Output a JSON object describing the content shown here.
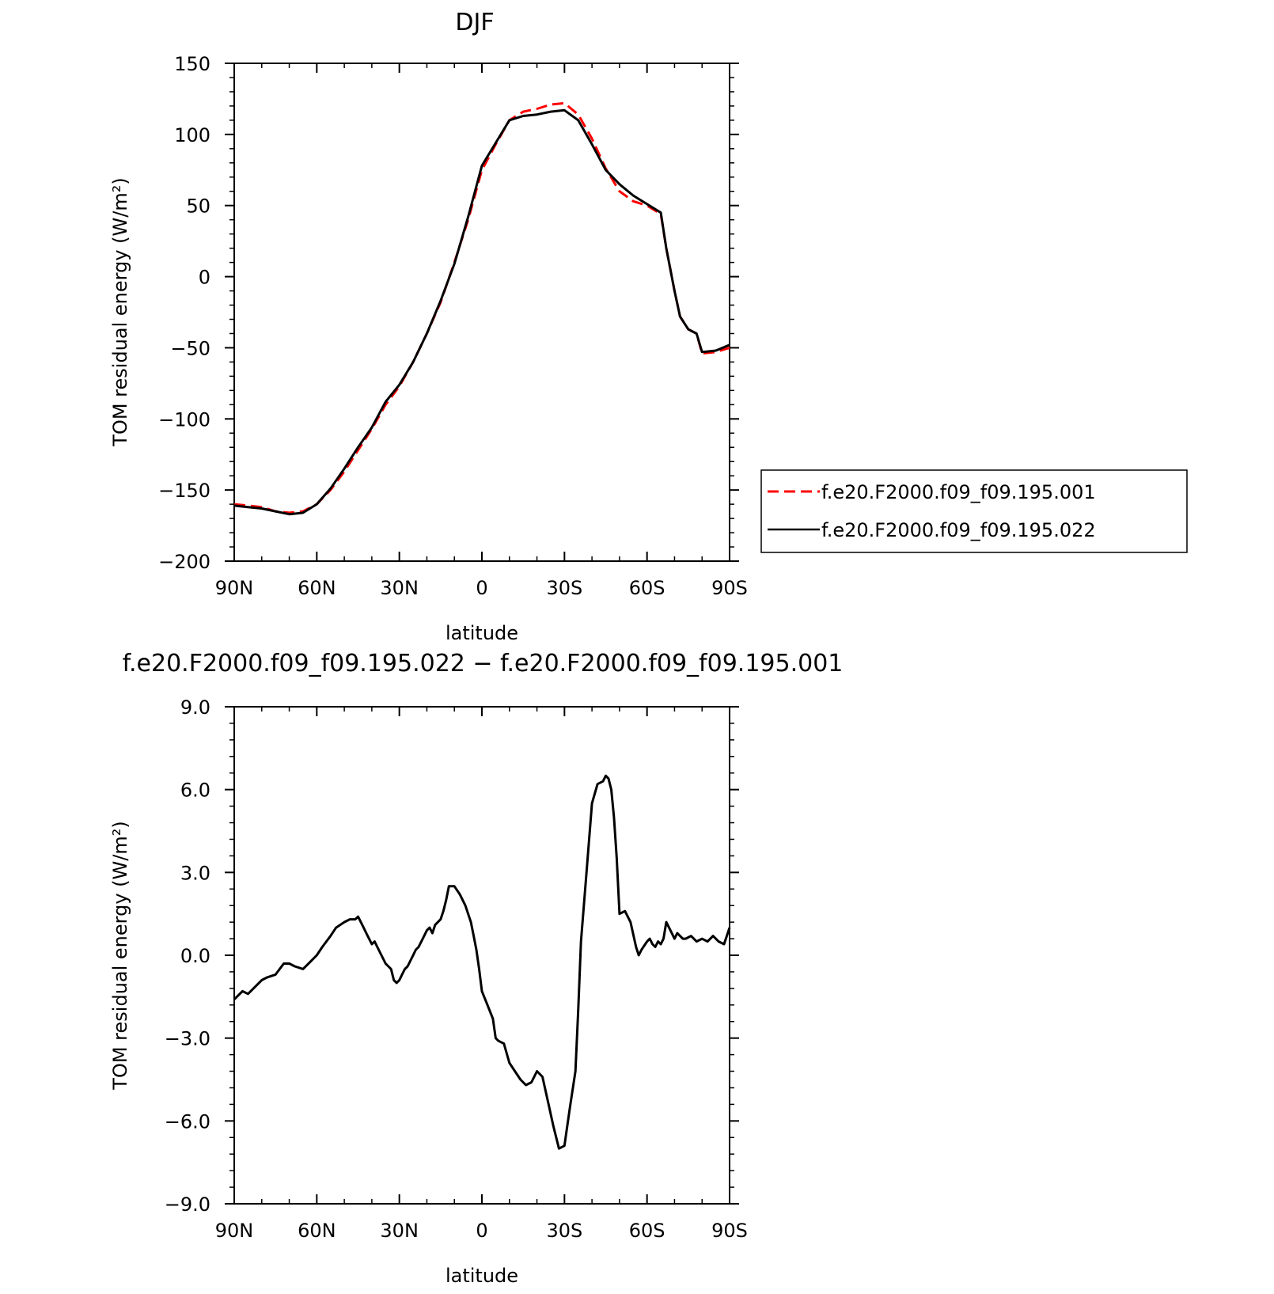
{
  "chart_data": [
    {
      "type": "line",
      "title": "DJF",
      "xlabel": "latitude",
      "ylabel": "TOM residual energy (W/m²)",
      "xlim": [
        90,
        -90
      ],
      "ylim": [
        -200,
        150
      ],
      "x_ticks": [
        90,
        60,
        30,
        0,
        -30,
        -60,
        -90
      ],
      "x_tick_labels": [
        "90N",
        "60N",
        "30N",
        "0",
        "30S",
        "60S",
        "90S"
      ],
      "y_ticks": [
        150,
        100,
        50,
        0,
        -50,
        -100,
        -150,
        -200
      ],
      "y_tick_labels": [
        "150",
        "100",
        "50",
        "0",
        "−50",
        "−100",
        "−150",
        "−200"
      ],
      "grid": false,
      "legend_position": "right",
      "series": [
        {
          "name": "f.e20.F2000.f09_f09.195.001",
          "color": "#ff0000",
          "dash": "dashed",
          "x": [
            90,
            85,
            80,
            75,
            70,
            65,
            60,
            55,
            50,
            45,
            40,
            35,
            30,
            25,
            20,
            15,
            10,
            5,
            0,
            -5,
            -10,
            -15,
            -20,
            -25,
            -30,
            -35,
            -40,
            -45,
            -50,
            -55,
            -60,
            -65,
            -67,
            -70,
            -72,
            -75,
            -78,
            -80,
            -85,
            -90
          ],
          "y": [
            -160,
            -161,
            -162,
            -165,
            -166,
            -165,
            -160,
            -150,
            -137,
            -122,
            -107,
            -90,
            -77,
            -60,
            -40,
            -18,
            10,
            40,
            75,
            93,
            110,
            116,
            118,
            121,
            122,
            114,
            97,
            76,
            60,
            53,
            50,
            44,
            20,
            -10,
            -28,
            -37,
            -40,
            -54,
            -53,
            -50
          ]
        },
        {
          "name": "f.e20.F2000.f09_f09.195.022",
          "color": "#000000",
          "dash": "solid",
          "x": [
            90,
            85,
            80,
            75,
            70,
            65,
            60,
            55,
            50,
            45,
            40,
            35,
            30,
            25,
            20,
            15,
            10,
            5,
            0,
            -5,
            -10,
            -15,
            -20,
            -25,
            -30,
            -35,
            -40,
            -45,
            -50,
            -55,
            -60,
            -65,
            -67,
            -70,
            -72,
            -75,
            -78,
            -80,
            -85,
            -90
          ],
          "y": [
            -161,
            -162,
            -163,
            -165,
            -167,
            -166,
            -160,
            -149,
            -135,
            -120,
            -106,
            -88,
            -76,
            -60,
            -40,
            -17,
            9,
            42,
            78,
            94,
            110,
            113,
            114,
            116,
            117,
            110,
            93,
            75,
            65,
            57,
            51,
            45,
            20,
            -10,
            -28,
            -37,
            -40,
            -53,
            -52,
            -48
          ]
        }
      ]
    },
    {
      "type": "line",
      "title": "f.e20.F2000.f09_f09.195.022 − f.e20.F2000.f09_f09.195.001",
      "xlabel": "latitude",
      "ylabel": "TOM residual energy (W/m²)",
      "xlim": [
        90,
        -90
      ],
      "ylim": [
        -9,
        9
      ],
      "x_ticks": [
        90,
        60,
        30,
        0,
        -30,
        -60,
        -90
      ],
      "x_tick_labels": [
        "90N",
        "60N",
        "30N",
        "0",
        "30S",
        "60S",
        "90S"
      ],
      "y_ticks": [
        9,
        6,
        3,
        0,
        -3,
        -6,
        -9
      ],
      "y_tick_labels": [
        "9.0",
        "6.0",
        "3.0",
        "0.0",
        "−3.0",
        "−6.0",
        "−9.0"
      ],
      "grid": false,
      "series": [
        {
          "color": "#000000",
          "dash": "solid",
          "x": [
            90,
            87,
            85,
            83,
            80,
            78,
            75,
            72,
            70,
            68,
            65,
            63,
            60,
            58,
            55,
            53,
            50,
            48,
            46,
            45,
            44,
            43,
            42,
            41,
            40,
            39,
            38,
            37,
            36,
            35,
            34,
            33,
            32,
            31,
            30,
            29,
            28,
            27,
            25,
            24,
            23,
            22,
            21,
            20,
            19,
            18,
            17,
            16,
            15,
            14,
            13,
            12,
            10,
            8,
            6,
            5,
            4,
            3,
            2,
            1,
            0,
            -2,
            -4,
            -5,
            -6,
            -8,
            -10,
            -12,
            -14,
            -16,
            -18,
            -20,
            -22,
            -24,
            -26,
            -28,
            -30,
            -32,
            -34,
            -35,
            -36,
            -38,
            -40,
            -42,
            -44,
            -45,
            -46,
            -47,
            -48,
            -49,
            -50,
            -52,
            -54,
            -56,
            -57,
            -58,
            -60,
            -61,
            -62,
            -63,
            -64,
            -65,
            -66,
            -67,
            -68,
            -69,
            -70,
            -71,
            -72,
            -73,
            -74,
            -76,
            -78,
            -80,
            -82,
            -84,
            -86,
            -88,
            -90
          ],
          "y": [
            -1.6,
            -1.3,
            -1.4,
            -1.2,
            -0.9,
            -0.8,
            -0.7,
            -0.3,
            -0.3,
            -0.4,
            -0.5,
            -0.3,
            0.0,
            0.3,
            0.7,
            1.0,
            1.2,
            1.3,
            1.3,
            1.4,
            1.2,
            1.0,
            0.8,
            0.6,
            0.4,
            0.5,
            0.3,
            0.1,
            -0.1,
            -0.3,
            -0.4,
            -0.5,
            -0.9,
            -1.0,
            -0.9,
            -0.7,
            -0.5,
            -0.4,
            0.0,
            0.2,
            0.3,
            0.5,
            0.7,
            0.9,
            1.0,
            0.8,
            1.1,
            1.2,
            1.3,
            1.6,
            2.0,
            2.5,
            2.5,
            2.2,
            1.8,
            1.5,
            1.2,
            0.7,
            0.2,
            -0.5,
            -1.3,
            -1.8,
            -2.3,
            -3.0,
            -3.1,
            -3.2,
            -3.9,
            -4.2,
            -4.5,
            -4.7,
            -4.6,
            -4.2,
            -4.4,
            -5.3,
            -6.2,
            -7.0,
            -6.9,
            -5.5,
            -4.2,
            -2.0,
            0.5,
            3.0,
            5.5,
            6.2,
            6.3,
            6.5,
            6.4,
            6.0,
            5.0,
            3.5,
            1.5,
            1.6,
            1.2,
            0.3,
            0.0,
            0.2,
            0.5,
            0.6,
            0.4,
            0.3,
            0.5,
            0.4,
            0.6,
            1.2,
            1.0,
            0.8,
            0.6,
            0.8,
            0.7,
            0.6,
            0.6,
            0.7,
            0.5,
            0.6,
            0.5,
            0.7,
            0.5,
            0.4,
            1.0
          ]
        }
      ]
    }
  ]
}
